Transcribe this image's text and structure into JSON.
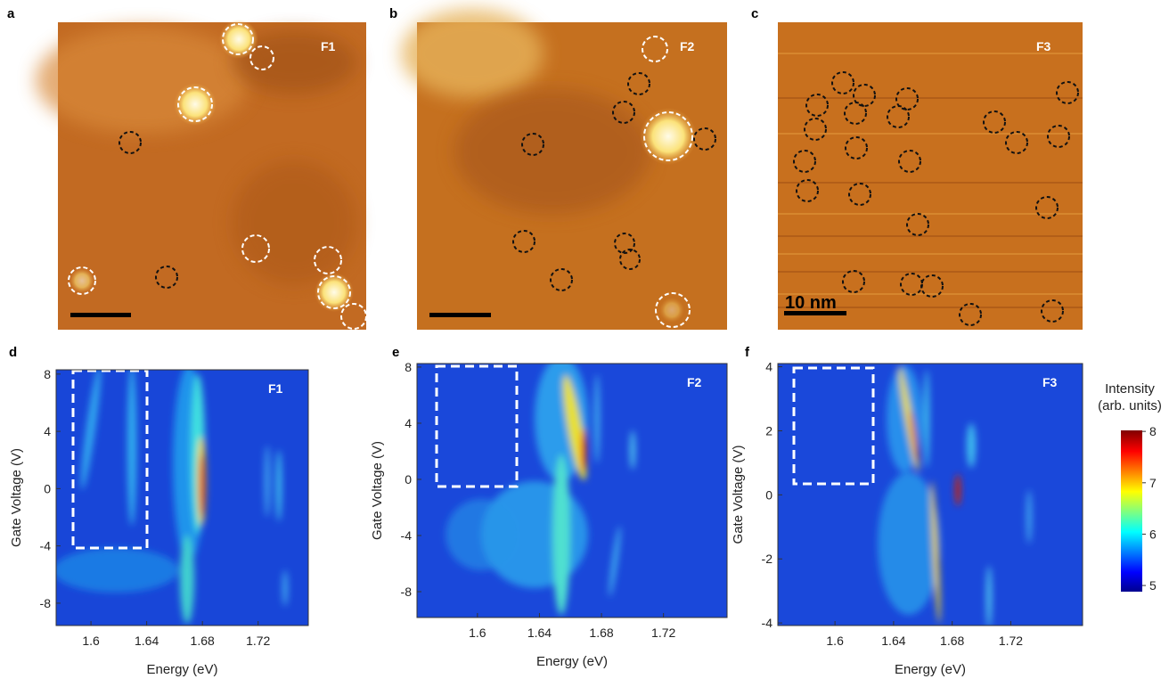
{
  "stm_panels": [
    {
      "label": "a",
      "tag": "F1"
    },
    {
      "label": "b",
      "tag": "F2"
    },
    {
      "label": "c",
      "tag": "F3",
      "scale_bar": "10 nm"
    }
  ],
  "spectra_panels": [
    {
      "label": "d",
      "tag": "F1",
      "xlabel": "Energy (eV)",
      "ylabel": "Gate Voltage (V)",
      "xlim": [
        1.575,
        1.756
      ],
      "ylim": [
        -9.56,
        8.3
      ],
      "xticks": [
        1.6,
        1.64,
        1.68,
        1.72
      ],
      "yticks": [
        8,
        4,
        0,
        -4,
        -8
      ]
    },
    {
      "label": "e",
      "tag": "F2",
      "xlabel": "Energy (eV)",
      "ylabel": "Gate Voltage (V)",
      "xlim": [
        1.561,
        1.761
      ],
      "ylim": [
        -9.84,
        8.25
      ],
      "xticks": [
        1.6,
        1.64,
        1.68,
        1.72
      ],
      "yticks": [
        8,
        4,
        0,
        -4,
        -8
      ]
    },
    {
      "label": "f",
      "tag": "F3",
      "xlabel": "Energy (eV)",
      "ylabel": "Gate Voltage (V)",
      "xlim": [
        1.561,
        1.769
      ],
      "ylim": [
        -4.08,
        4.1
      ],
      "xticks": [
        1.6,
        1.64,
        1.68,
        1.72
      ],
      "yticks": [
        4,
        2,
        0,
        -2,
        -4
      ]
    }
  ],
  "colorbar": {
    "title": "Intensity",
    "subtitle": "(arb. units)",
    "lim": [
      4.88,
      8.02
    ],
    "ticks": [
      5,
      6,
      7,
      8
    ]
  }
}
